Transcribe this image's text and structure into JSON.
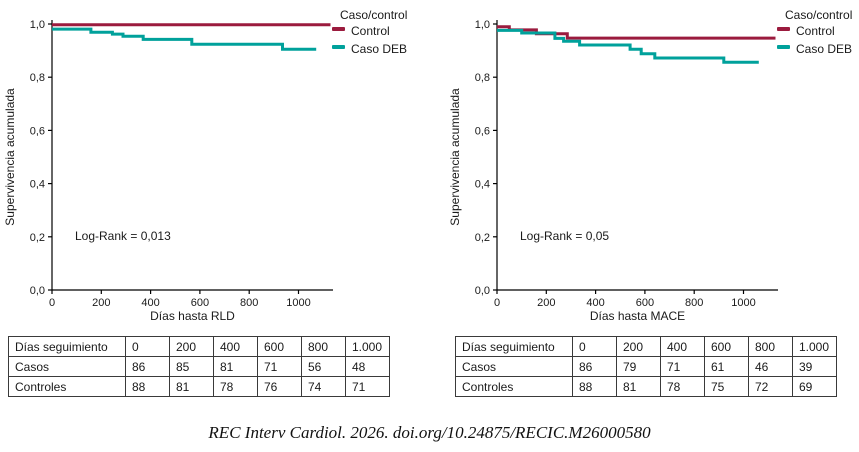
{
  "colors": {
    "control": "#9B1B3E",
    "caso_deb": "#00A19B",
    "axis": "#000000",
    "background": "#FFFFFF"
  },
  "citation": "REC Interv Cardiol. 2026. doi.org/10.24875/RECIC.M26000580",
  "chart_data": [
    {
      "type": "line",
      "subtype": "kaplan-meier-step",
      "title": "",
      "xlabel": "Días hasta RLD",
      "ylabel": "Supervivencia acumulada",
      "annotation": "Log-Rank = 0,013",
      "legend_title": "Caso/control",
      "legend_position": "top-right-outside",
      "grid": false,
      "xlim": [
        0,
        1150
      ],
      "ylim": [
        0.0,
        1.0
      ],
      "xticks": [
        0,
        200,
        400,
        600,
        800,
        1000
      ],
      "xtick_labels": [
        "0",
        "200",
        "400",
        "600",
        "800",
        "1000"
      ],
      "yticks": [
        0.0,
        0.2,
        0.4,
        0.6,
        0.8,
        1.0
      ],
      "ytick_labels": [
        "0,0",
        "0,2",
        "0,4",
        "0,6",
        "0,8",
        "1,0"
      ],
      "series": [
        {
          "name": "Control",
          "color_key": "control",
          "x": [
            0
          ],
          "y": [
            0.997
          ],
          "x_end": 1130
        },
        {
          "name": "Caso DEB",
          "color_key": "caso_deb",
          "x": [
            0,
            158,
            245,
            288,
            370,
            567,
            935
          ],
          "y": [
            0.981,
            0.969,
            0.962,
            0.954,
            0.942,
            0.924,
            0.905
          ],
          "x_end": 1072
        }
      ]
    },
    {
      "type": "line",
      "subtype": "kaplan-meier-step",
      "title": "",
      "xlabel": "Días hasta MACE",
      "ylabel": "Supervivencia acumulada",
      "annotation": "Log-Rank = 0,05",
      "legend_title": "Caso/control",
      "legend_position": "top-right-outside",
      "grid": false,
      "xlim": [
        0,
        1150
      ],
      "ylim": [
        0.0,
        1.0
      ],
      "xticks": [
        0,
        200,
        400,
        600,
        800,
        1000
      ],
      "xtick_labels": [
        "0",
        "200",
        "400",
        "600",
        "800",
        "1000"
      ],
      "yticks": [
        0.0,
        0.2,
        0.4,
        0.6,
        0.8,
        1.0
      ],
      "ytick_labels": [
        "0,0",
        "0,2",
        "0,4",
        "0,6",
        "0,8",
        "1,0"
      ],
      "series": [
        {
          "name": "Control",
          "color_key": "control",
          "x": [
            0,
            50,
            160,
            285
          ],
          "y": [
            0.99,
            0.978,
            0.963,
            0.947
          ],
          "x_end": 1130
        },
        {
          "name": "Caso DEB",
          "color_key": "caso_deb",
          "x": [
            0,
            100,
            235,
            270,
            335,
            540,
            585,
            640,
            920
          ],
          "y": [
            0.976,
            0.966,
            0.946,
            0.935,
            0.921,
            0.905,
            0.888,
            0.872,
            0.856
          ],
          "x_end": 1062
        }
      ]
    }
  ],
  "legend": {
    "title": "Caso/control",
    "items": [
      {
        "label": "Control",
        "color_key": "control"
      },
      {
        "label": "Caso DEB",
        "color_key": "caso_deb"
      }
    ]
  },
  "tables": [
    {
      "header": [
        "Días seguimiento",
        "0",
        "200",
        "400",
        "600",
        "800",
        "1.000"
      ],
      "rows": [
        [
          "Casos",
          "86",
          "85",
          "81",
          "71",
          "56",
          "48"
        ],
        [
          "Controles",
          "88",
          "81",
          "78",
          "76",
          "74",
          "71"
        ]
      ]
    },
    {
      "header": [
        "Días seguimiento",
        "0",
        "200",
        "400",
        "600",
        "800",
        "1.000"
      ],
      "rows": [
        [
          "Casos",
          "86",
          "79",
          "71",
          "61",
          "46",
          "39"
        ],
        [
          "Controles",
          "88",
          "81",
          "78",
          "75",
          "72",
          "69"
        ]
      ]
    }
  ]
}
